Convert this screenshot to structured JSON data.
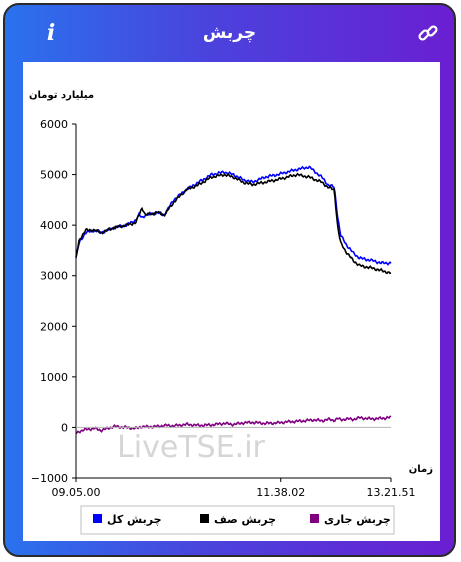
{
  "header": {
    "title": "چربش",
    "info_icon": "info-icon",
    "link_icon": "link-icon"
  },
  "colors": {
    "gradient_start": "#2a72ee",
    "gradient_end": "#6a1fd1",
    "series_total": "#0000ff",
    "series_queue": "#000000",
    "series_current": "#800080"
  },
  "chart_data": {
    "type": "line",
    "ylabel": "میلیارد تومان",
    "xlabel": "زمان",
    "ylim": [
      -1000,
      6000
    ],
    "yticks": [
      -1000,
      0,
      1000,
      2000,
      3000,
      4000,
      5000,
      6000
    ],
    "yticks_labels": [
      "−1000",
      "0",
      "1000",
      "2000",
      "3000",
      "4000",
      "5000",
      "6000"
    ],
    "xticks": [
      "09.05.00",
      "11.38.02",
      "13.21.51"
    ],
    "watermark": "LiveTSE.ir",
    "legend": [
      "چربش کل",
      "چربش صف",
      "چربش جاری"
    ],
    "legend_placement": "bottom",
    "grid": false,
    "x": [
      0,
      0.01,
      0.03,
      0.06,
      0.08,
      0.12,
      0.16,
      0.19,
      0.2,
      0.21,
      0.22,
      0.26,
      0.28,
      0.31,
      0.35,
      0.39,
      0.43,
      0.47,
      0.5,
      0.53,
      0.56,
      0.6,
      0.64,
      0.67,
      0.7,
      0.74,
      0.76,
      0.78,
      0.8,
      0.82,
      0.83,
      0.84,
      0.86,
      0.88,
      0.9,
      0.94,
      0.97,
      1.0
    ],
    "series": [
      {
        "name": "چربش کل",
        "color": "#0000ff",
        "values": [
          3350,
          3650,
          3850,
          3900,
          3850,
          3950,
          4000,
          4100,
          4200,
          4150,
          4200,
          4250,
          4200,
          4500,
          4700,
          4850,
          5000,
          5050,
          5000,
          4900,
          4850,
          4950,
          5000,
          5050,
          5100,
          5150,
          5050,
          4950,
          4800,
          4750,
          4200,
          3800,
          3600,
          3450,
          3350,
          3300,
          3250,
          3250
        ]
      },
      {
        "name": "چربش صف",
        "color": "#000000",
        "values": [
          3350,
          3700,
          3900,
          3900,
          3850,
          3950,
          4000,
          4050,
          4200,
          4350,
          4200,
          4250,
          4200,
          4450,
          4700,
          4800,
          4950,
          5000,
          4950,
          4850,
          4800,
          4850,
          4900,
          4950,
          5000,
          4950,
          4900,
          4850,
          4750,
          4700,
          4000,
          3650,
          3450,
          3300,
          3200,
          3150,
          3100,
          3050
        ]
      },
      {
        "name": "چربش جاری",
        "color": "#800080",
        "values": [
          -120,
          -80,
          -40,
          -20,
          -60,
          20,
          0,
          -20,
          0,
          20,
          10,
          20,
          40,
          30,
          60,
          40,
          50,
          80,
          60,
          90,
          100,
          80,
          90,
          110,
          120,
          140,
          150,
          130,
          160,
          140,
          180,
          150,
          170,
          160,
          190,
          170,
          180,
          200
        ]
      }
    ]
  }
}
